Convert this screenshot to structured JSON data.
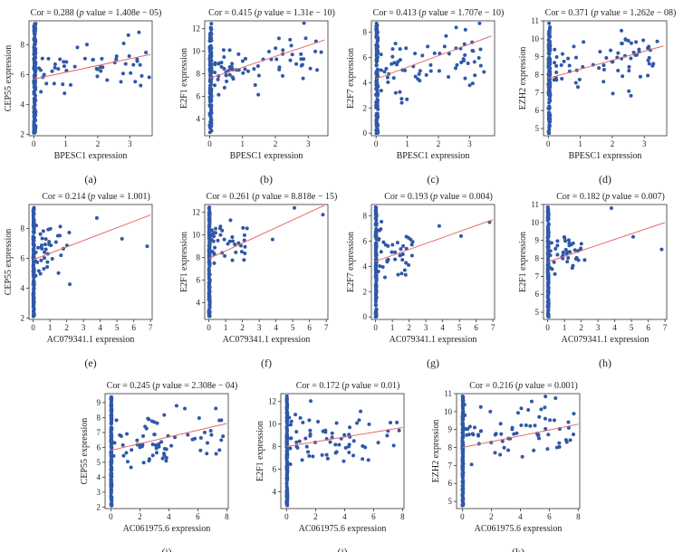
{
  "figure": {
    "point_color": "#2f58a8",
    "line_color": "#e56a6a",
    "panels_note": "scatter plots with linear fit"
  },
  "chart_data": [
    {
      "id": "a",
      "type": "scatter",
      "title_prefix": "Cor = 0.288 (",
      "title_p": "p",
      "title_suffix": " value = 1.408e − 05)",
      "xlabel": "BPESC1 expression",
      "ylabel": "CEP55 expression",
      "xlim": [
        -0.15,
        3.7
      ],
      "ylim": [
        1.9,
        9.6
      ],
      "xticks": [
        0,
        1,
        2,
        3
      ],
      "yticks": [
        2,
        4,
        6,
        8
      ],
      "fit": [
        [
          0,
          5.7
        ],
        [
          3.65,
          7.35
        ]
      ],
      "seed": 11,
      "n_zero": 150,
      "n_other": 55,
      "x_max": 3.65,
      "center": 6.3,
      "spread": 1.4,
      "label": "(a)"
    },
    {
      "id": "b",
      "type": "scatter",
      "title_prefix": "Cor = 0.415 (",
      "title_p": "p",
      "title_suffix": " value = 1.31e − 10)",
      "xlabel": "BPESC1 expression",
      "ylabel": "E2F1 expression",
      "xlim": [
        -0.15,
        3.6
      ],
      "ylim": [
        2.5,
        12.7
      ],
      "xticks": [
        0,
        1,
        2,
        3
      ],
      "yticks": [
        4,
        6,
        8,
        10,
        12
      ],
      "fit": [
        [
          0,
          7.6
        ],
        [
          3.5,
          11.0
        ]
      ],
      "seed": 23,
      "n_zero": 150,
      "n_other": 70,
      "x_max": 3.4,
      "center": 9.0,
      "spread": 1.7,
      "label": "(b)"
    },
    {
      "id": "c",
      "type": "scatter",
      "title_prefix": "Cor = 0.413 (",
      "title_p": "p",
      "title_suffix": " value = 1.707e − 10)",
      "xlabel": "BPESC1 expression",
      "ylabel": "E2F7 expression",
      "xlim": [
        -0.15,
        3.8
      ],
      "ylim": [
        -0.2,
        8.9
      ],
      "xticks": [
        0,
        1,
        2,
        3
      ],
      "yticks": [
        0,
        2,
        4,
        6,
        8
      ],
      "fit": [
        [
          0,
          4.3
        ],
        [
          3.7,
          7.7
        ]
      ],
      "seed": 37,
      "n_zero": 150,
      "n_other": 70,
      "x_max": 3.6,
      "center": 5.4,
      "spread": 1.8,
      "label": "(c)"
    },
    {
      "id": "d",
      "type": "scatter",
      "title_prefix": "Cor = 0.371 (",
      "title_p": "p",
      "title_suffix": " value = 1.262e − 08)",
      "xlabel": "BPESC1 expression",
      "ylabel": "EZH2 expression",
      "xlim": [
        -0.15,
        3.7
      ],
      "ylim": [
        4.6,
        11.0
      ],
      "xticks": [
        0,
        1,
        2,
        3
      ],
      "yticks": [
        5,
        6,
        7,
        8,
        9,
        10,
        11
      ],
      "fit": [
        [
          0,
          7.8
        ],
        [
          3.6,
          9.6
        ]
      ],
      "seed": 41,
      "n_zero": 150,
      "n_other": 70,
      "x_max": 3.5,
      "center": 8.8,
      "spread": 1.0,
      "label": "(d)"
    },
    {
      "id": "e",
      "type": "scatter",
      "title_prefix": "Cor = 0.214 (",
      "title_p": "p",
      "title_suffix": " value = 1.001)",
      "xlabel": "AC079341.1 expression",
      "ylabel": "CEP55 expression",
      "xlim": [
        -0.25,
        7.1
      ],
      "ylim": [
        1.9,
        9.6
      ],
      "xticks": [
        0,
        1,
        2,
        3,
        4,
        5,
        6,
        7
      ],
      "yticks": [
        2,
        4,
        6,
        8
      ],
      "fit": [
        [
          0,
          5.9
        ],
        [
          7.0,
          8.9
        ]
      ],
      "seed": 53,
      "n_zero": 160,
      "n_other": 40,
      "x_max": 2.2,
      "center": 6.5,
      "spread": 1.3,
      "label": "(e)",
      "extra": [
        [
          3.8,
          8.7
        ],
        [
          5.3,
          7.3
        ],
        [
          6.8,
          6.8
        ]
      ]
    },
    {
      "id": "f",
      "type": "scatter",
      "title_prefix": "Cor = 0.261 (",
      "title_p": "p",
      "title_suffix": " value = 8.818e − 15)",
      "xlabel": "AC079341.1 expression",
      "ylabel": "E2F1 expression",
      "xlim": [
        -0.25,
        7.1
      ],
      "ylim": [
        2.5,
        12.7
      ],
      "xticks": [
        0,
        1,
        2,
        3,
        4,
        5,
        6,
        7
      ],
      "yticks": [
        4,
        6,
        8,
        10,
        12
      ],
      "fit": [
        [
          0,
          7.9
        ],
        [
          7.0,
          12.7
        ]
      ],
      "seed": 67,
      "n_zero": 160,
      "n_other": 40,
      "x_max": 2.3,
      "center": 9.5,
      "spread": 1.4,
      "label": "(f)",
      "extra": [
        [
          3.8,
          9.6
        ],
        [
          5.1,
          12.4
        ],
        [
          6.8,
          11.8
        ]
      ]
    },
    {
      "id": "g",
      "type": "scatter",
      "title_prefix": "Cor = 0.193 (",
      "title_p": "p",
      "title_suffix": " value = 0.004)",
      "xlabel": "AC079341.1 expression",
      "ylabel": "E2F7 expression",
      "xlim": [
        -0.25,
        7.1
      ],
      "ylim": [
        -0.2,
        8.9
      ],
      "xticks": [
        0,
        1,
        2,
        3,
        4,
        5,
        6,
        7
      ],
      "yticks": [
        0,
        2,
        4,
        6,
        8
      ],
      "fit": [
        [
          0,
          4.4
        ],
        [
          7.0,
          7.7
        ]
      ],
      "seed": 71,
      "n_zero": 160,
      "n_other": 40,
      "x_max": 2.3,
      "center": 5.0,
      "spread": 1.6,
      "label": "(g)",
      "extra": [
        [
          3.8,
          7.2
        ],
        [
          5.1,
          6.4
        ],
        [
          6.8,
          7.5
        ]
      ]
    },
    {
      "id": "h",
      "type": "scatter",
      "title_prefix": "Cor = 0.182 (",
      "title_p": "p",
      "title_suffix": " value = 0.007)",
      "xlabel": "AC079341.1 expression",
      "ylabel": "E2F1 expression",
      "xlim": [
        -0.25,
        7.1
      ],
      "ylim": [
        4.6,
        11.0
      ],
      "xticks": [
        0,
        1,
        2,
        3,
        4,
        5,
        6,
        7
      ],
      "yticks": [
        5,
        6,
        7,
        8,
        9,
        10,
        11
      ],
      "fit": [
        [
          0,
          7.8
        ],
        [
          7.0,
          10.0
        ]
      ],
      "seed": 83,
      "n_zero": 160,
      "n_other": 40,
      "x_max": 2.3,
      "center": 8.4,
      "spread": 0.9,
      "label": "(h)",
      "extra": [
        [
          3.8,
          10.8
        ],
        [
          5.1,
          9.2
        ],
        [
          6.8,
          8.5
        ]
      ]
    },
    {
      "id": "i",
      "type": "scatter",
      "title_prefix": "Cor = 0.245 (",
      "title_p": "p",
      "title_suffix": " value = 2.308e − 04)",
      "xlabel": "AC061975.6 expression",
      "ylabel": "CEP55 expression",
      "xlim": [
        -0.4,
        8.1
      ],
      "ylim": [
        1.9,
        9.6
      ],
      "xticks": [
        0,
        2,
        4,
        6,
        8
      ],
      "yticks": [
        2,
        3,
        4,
        5,
        6,
        7,
        8,
        9
      ],
      "fit": [
        [
          0,
          5.8
        ],
        [
          8.0,
          7.6
        ]
      ],
      "seed": 97,
      "n_zero": 160,
      "n_other": 70,
      "x_max": 7.8,
      "center": 6.4,
      "spread": 1.4,
      "label": "(i)"
    },
    {
      "id": "j",
      "type": "scatter",
      "title_prefix": "Cor = 0.172 (",
      "title_p": "p",
      "title_suffix": " value = 0.01)",
      "xlabel": "AC061975.6 expression",
      "ylabel": "E2F1 expression",
      "xlim": [
        -0.4,
        8.1
      ],
      "ylim": [
        2.5,
        12.7
      ],
      "xticks": [
        0,
        2,
        4,
        6,
        8
      ],
      "yticks": [
        4,
        6,
        8,
        10,
        12
      ],
      "fit": [
        [
          0,
          8.0
        ],
        [
          8.0,
          9.7
        ]
      ],
      "seed": 101,
      "n_zero": 160,
      "n_other": 70,
      "x_max": 7.8,
      "center": 8.8,
      "spread": 1.8,
      "label": "(j)"
    },
    {
      "id": "k",
      "type": "scatter",
      "title_prefix": "Cor = 0.216 (",
      "title_p": "p",
      "title_suffix": " value = 0.001)",
      "xlabel": "AC061975.6 expression",
      "ylabel": "EZH2 expression",
      "xlim": [
        -0.4,
        8.1
      ],
      "ylim": [
        4.6,
        11.0
      ],
      "xticks": [
        0,
        2,
        4,
        6,
        8
      ],
      "yticks": [
        5,
        6,
        7,
        8,
        9,
        10,
        11
      ],
      "fit": [
        [
          0,
          8.0
        ],
        [
          8.0,
          9.3
        ]
      ],
      "seed": 113,
      "n_zero": 160,
      "n_other": 70,
      "x_max": 7.8,
      "center": 8.6,
      "spread": 1.2,
      "label": "(k)"
    }
  ]
}
